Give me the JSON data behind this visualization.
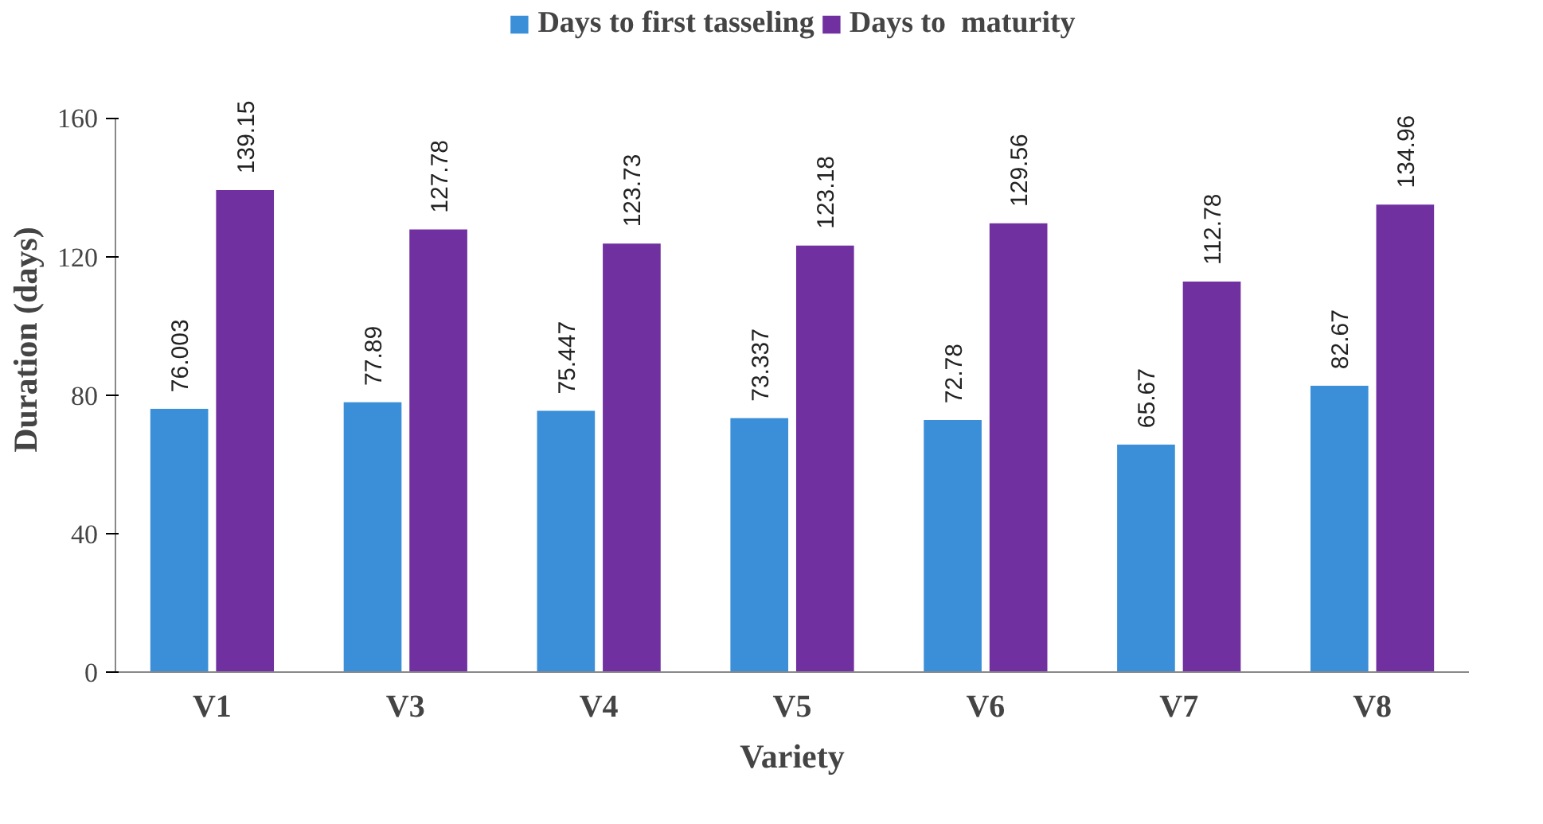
{
  "chart_data": {
    "type": "bar",
    "xlabel": "Variety",
    "ylabel": "Duration (days)",
    "categories": [
      "V1",
      "V3",
      "V4",
      "V5",
      "V6",
      "V7",
      "V8"
    ],
    "series": [
      {
        "name": "Days to first tasseling",
        "color": "#3a8fd8",
        "values": [
          76.003,
          77.89,
          75.447,
          73.337,
          72.78,
          65.67,
          82.67
        ]
      },
      {
        "name": "Days to  maturity",
        "color": "#7030a0",
        "values": [
          139.15,
          127.78,
          123.73,
          123.18,
          129.56,
          112.78,
          134.96
        ]
      }
    ],
    "ylim": [
      0,
      160
    ],
    "yticks": [
      0,
      40,
      80,
      120,
      160
    ],
    "grid": false,
    "legend": "top",
    "data_labels": true
  }
}
